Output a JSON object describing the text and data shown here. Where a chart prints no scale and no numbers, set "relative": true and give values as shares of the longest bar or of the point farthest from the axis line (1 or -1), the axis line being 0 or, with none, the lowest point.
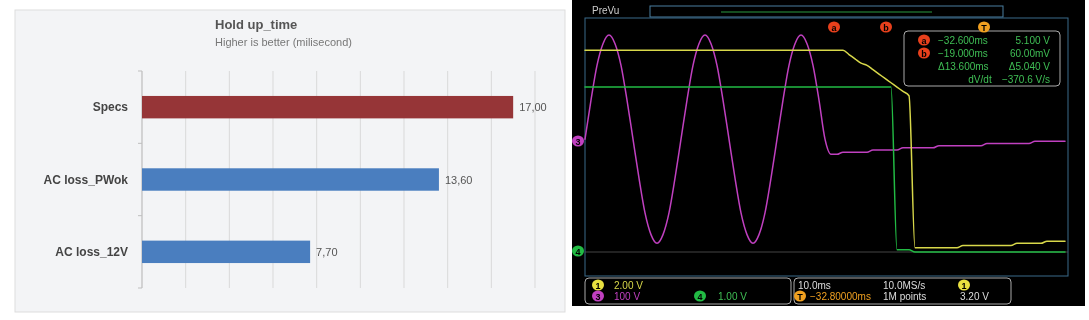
{
  "chart_data": [
    {
      "type": "bar",
      "orientation": "horizontal",
      "title": "Hold up_time",
      "subtitle": "Higher is better (milisecond)",
      "categories": [
        "Specs",
        "AC loss_PWok",
        "AC loss_12V"
      ],
      "values": [
        17,
        13.6,
        7.7
      ],
      "colors": [
        "#963537",
        "#4a7ebf",
        "#4a7ebf"
      ],
      "value_labels": [
        "17,00",
        "13,60",
        "7,70"
      ],
      "xlim": [
        0,
        18
      ],
      "xticks": [
        {
          "value": 0,
          "label": null
        },
        {
          "value": 2,
          "label": null
        },
        {
          "value": 4,
          "label": null
        },
        {
          "value": 6,
          "label": null
        },
        {
          "value": 8,
          "label": null
        },
        {
          "value": 10,
          "label": null
        },
        {
          "value": 12,
          "label": null
        },
        {
          "value": 14,
          "label": null
        },
        {
          "value": 16,
          "label": null
        },
        {
          "value": 18,
          "label": null
        }
      ],
      "grid": "x",
      "tick_labels": "y"
    },
    {
      "type": "line",
      "relative": true,
      "tick_labels": false,
      "categories": [
        null,
        null,
        null,
        null,
        null,
        null,
        null,
        null,
        null,
        null,
        null,
        null,
        null,
        null,
        null,
        null,
        null,
        null,
        null,
        null,
        null,
        null,
        null,
        null,
        null,
        null,
        null,
        null,
        null,
        null,
        null,
        null,
        null,
        null,
        null,
        null,
        null,
        null,
        null,
        null,
        null,
        null,
        null,
        null,
        null,
        null,
        null,
        null,
        null,
        null,
        null,
        null,
        null,
        null,
        null,
        null,
        null,
        null,
        null,
        null,
        null,
        null,
        null,
        null,
        null,
        null,
        null,
        null,
        null,
        null,
        null,
        null,
        null,
        null,
        null,
        null,
        null,
        null,
        null,
        null,
        null
      ],
      "series": [
        {
          "color": "#c040c0",
          "values": [
            0.52,
            0.7,
            0.86,
            0.96,
            1,
            0.96,
            0.86,
            0.7,
            0.52,
            0.34,
            0.18,
            0.08,
            0.04,
            0.08,
            0.18,
            0.34,
            0.52,
            0.7,
            0.86,
            0.96,
            1,
            0.96,
            0.86,
            0.7,
            0.52,
            0.34,
            0.18,
            0.08,
            0.04,
            0.08,
            0.18,
            0.34,
            0.52,
            0.7,
            0.86,
            0.96,
            1,
            0.96,
            0.86,
            0.7,
            0.52,
            0.45,
            0.45,
            0.46,
            0.46,
            0.46,
            0.46,
            0.46,
            0.47,
            0.47,
            0.47,
            0.47,
            0.47,
            0.48,
            0.48,
            0.48,
            0.48,
            0.48,
            0.48,
            0.49,
            0.49,
            0.49,
            0.49,
            0.49,
            0.49,
            0.49,
            0.49,
            0.5,
            0.5,
            0.5,
            0.5,
            0.5,
            0.5,
            0.5,
            0.5,
            0.51,
            0.51,
            0.51,
            0.51,
            0.51,
            0.51
          ]
        },
        {
          "color": "#d8d84a",
          "values": [
            0.93,
            0.93,
            0.93,
            0.93,
            0.93,
            0.93,
            0.93,
            0.93,
            0.93,
            0.93,
            0.93,
            0.93,
            0.93,
            0.93,
            0.93,
            0.93,
            0.93,
            0.93,
            0.93,
            0.93,
            0.93,
            0.93,
            0.93,
            0.93,
            0.93,
            0.93,
            0.93,
            0.93,
            0.93,
            0.93,
            0.93,
            0.93,
            0.93,
            0.93,
            0.93,
            0.93,
            0.93,
            0.93,
            0.93,
            0.93,
            0.93,
            0.93,
            0.93,
            0.93,
            0.91,
            0.89,
            0.87,
            0.86,
            0.84,
            0.82,
            0.8,
            0.78,
            0.76,
            0.74,
            0.72,
            0.02,
            0.02,
            0.02,
            0.02,
            0.02,
            0.02,
            0.02,
            0.02,
            0.03,
            0.03,
            0.03,
            0.03,
            0.03,
            0.03,
            0.03,
            0.03,
            0.03,
            0.04,
            0.04,
            0.04,
            0.04,
            0.04,
            0.05,
            0.05,
            0.05,
            0.05
          ]
        },
        {
          "color": "#22bb44",
          "values": [
            0.76,
            0.76,
            0.76,
            0.76,
            0.76,
            0.76,
            0.76,
            0.76,
            0.76,
            0.76,
            0.76,
            0.76,
            0.76,
            0.76,
            0.76,
            0.76,
            0.76,
            0.76,
            0.76,
            0.76,
            0.76,
            0.76,
            0.76,
            0.76,
            0.76,
            0.76,
            0.76,
            0.76,
            0.76,
            0.76,
            0.76,
            0.76,
            0.76,
            0.76,
            0.76,
            0.76,
            0.76,
            0.76,
            0.76,
            0.76,
            0.76,
            0.76,
            0.76,
            0.76,
            0.76,
            0.76,
            0.76,
            0.76,
            0.76,
            0.76,
            0.76,
            0.76,
            0.01,
            0.01,
            0.01,
            0,
            0,
            0,
            0,
            0,
            0,
            0,
            0,
            0,
            0,
            0,
            0,
            0,
            0,
            0,
            0,
            0,
            0,
            0,
            0,
            0,
            0,
            0,
            0,
            0,
            0
          ]
        }
      ],
      "annotations": [
        "PreVu",
        "a",
        "b",
        "T",
        "a",
        "−32.600ms",
        "5.100 V",
        "b",
        "−19.000ms",
        "60.00mV",
        "Δ13.600ms",
        "Δ5.040 V",
        "dV/dt",
        "−370.6 V/s",
        "3",
        "4",
        "1",
        "2.00 V",
        "3",
        "100 V",
        "4",
        "1.00 V",
        "10.0ms",
        "10.0MS/s",
        "1",
        "3.20 V",
        "T",
        "−32.80000ms",
        "1M points"
      ]
    }
  ]
}
